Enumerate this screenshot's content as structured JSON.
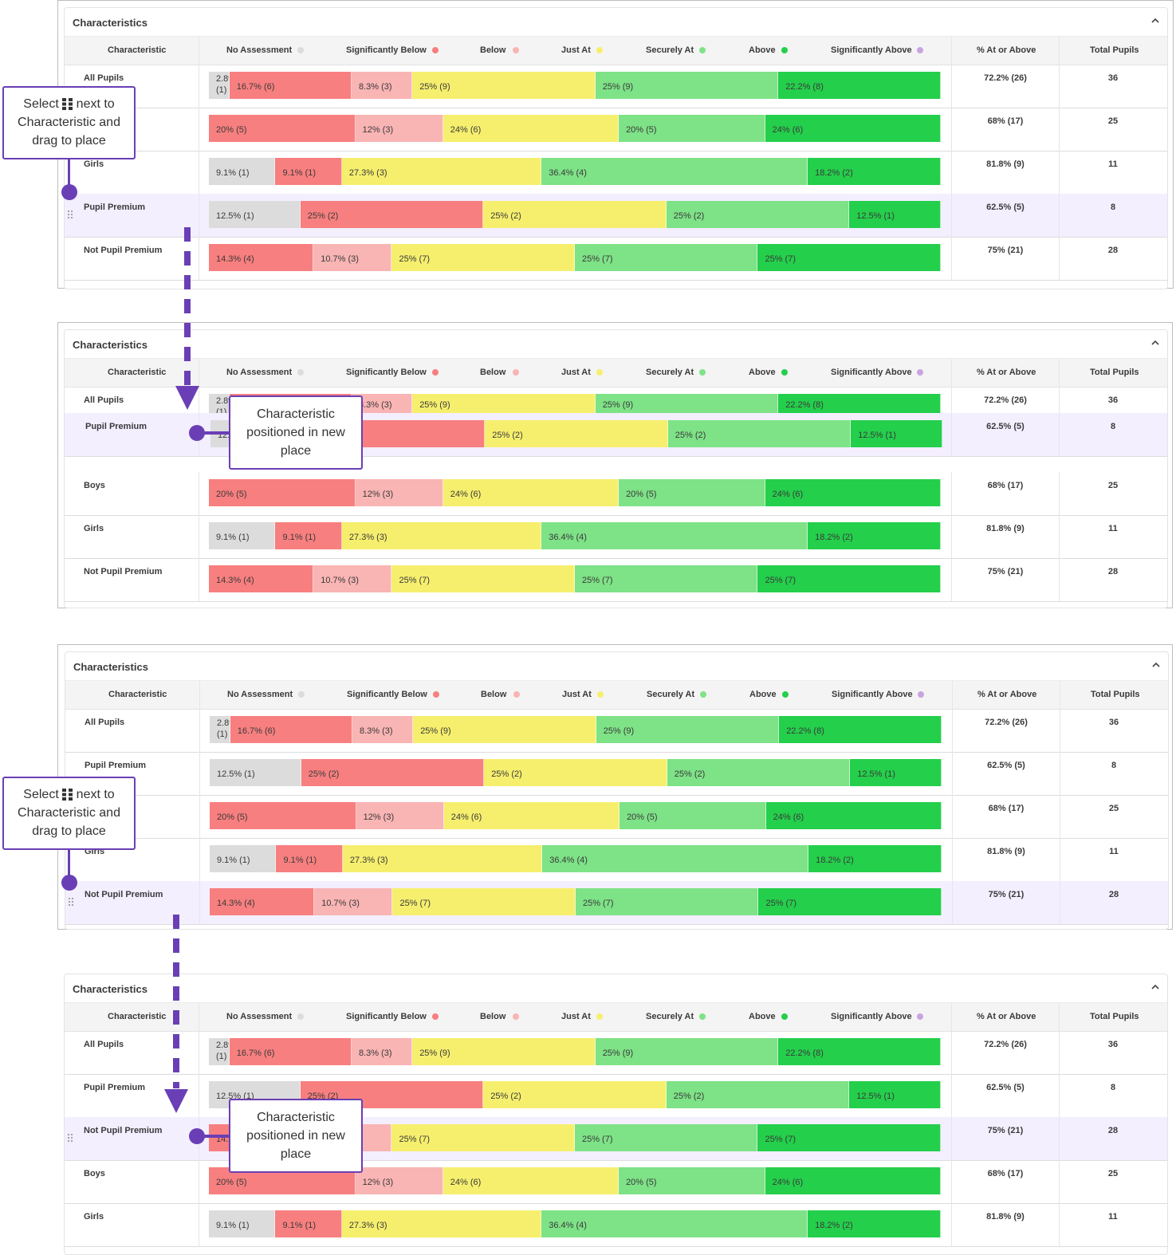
{
  "card_title": "Characteristics",
  "headers": {
    "characteristic": "Characteristic",
    "no_assessment": "No Assessment",
    "sig_below": "Significantly Below",
    "below": "Below",
    "just_at": "Just At",
    "securely_at": "Securely At",
    "above": "Above",
    "sig_above": "Significantly Above",
    "pct": "% At or Above",
    "total": "Total Pupils"
  },
  "colors": {
    "no_assessment": "#dcdcdc",
    "sig_below": "#f87f7f",
    "below": "#f9b4b4",
    "just_at": "#f6ef6e",
    "securely_at": "#7ee287",
    "above": "#24cf4b",
    "sig_above": "#c9a4e0",
    "accent": "#6a3fb5"
  },
  "rows": {
    "all": {
      "name": "All Pupils",
      "segments": [
        {
          "label": "2.8% (1)",
          "pct": 2.8
        },
        {
          "label": "16.7% (6)",
          "pct": 16.7
        },
        {
          "label": "8.3% (3)",
          "pct": 8.3
        },
        {
          "label": "25% (9)",
          "pct": 25
        },
        {
          "label": "25% (9)",
          "pct": 25
        },
        {
          "label": "22.2% (8)",
          "pct": 22.2
        }
      ],
      "pct": "72.2% (26)",
      "total": "36"
    },
    "boys": {
      "name": "Boys",
      "segments": [
        {
          "label": "20% (5)",
          "pct": 20
        },
        {
          "label": "12% (3)",
          "pct": 12
        },
        {
          "label": "24% (6)",
          "pct": 24
        },
        {
          "label": "20% (5)",
          "pct": 20
        },
        {
          "label": "24% (6)",
          "pct": 24
        }
      ],
      "pct": "68% (17)",
      "total": "25"
    },
    "girls": {
      "name": "Girls",
      "segments": [
        {
          "label": "9.1% (1)",
          "pct": 9.1
        },
        {
          "label": "9.1% (1)",
          "pct": 9.1
        },
        {
          "label": "27.3% (3)",
          "pct": 27.3
        },
        {
          "label": "36.4% (4)",
          "pct": 36.4
        },
        {
          "label": "18.2% (2)",
          "pct": 18.2
        }
      ],
      "pct": "81.8% (9)",
      "total": "11"
    },
    "pp": {
      "name": "Pupil Premium",
      "segments": [
        {
          "label": "12.5% (1)",
          "pct": 12.5
        },
        {
          "label": "25% (2)",
          "pct": 25
        },
        {
          "label": "25% (2)",
          "pct": 25
        },
        {
          "label": "25% (2)",
          "pct": 25
        },
        {
          "label": "12.5% (1)",
          "pct": 12.5
        }
      ],
      "pct": "62.5% (5)",
      "total": "8"
    },
    "npp": {
      "name": "Not Pupil Premium",
      "segments": [
        {
          "label": "14.3% (4)",
          "pct": 14.3
        },
        {
          "label": "10.7% (3)",
          "pct": 10.7
        },
        {
          "label": "25% (7)",
          "pct": 25
        },
        {
          "label": "25% (7)",
          "pct": 25
        },
        {
          "label": "25% (7)",
          "pct": 25
        }
      ],
      "pct": "75% (21)",
      "total": "28"
    }
  },
  "callouts": {
    "select_pre": "Select",
    "select_post": "next to",
    "select_line2": "Characteristic and",
    "select_line3": "drag to place",
    "placed_line1": "Characteristic",
    "placed_line2": "positioned in new",
    "placed_line3": "place"
  }
}
